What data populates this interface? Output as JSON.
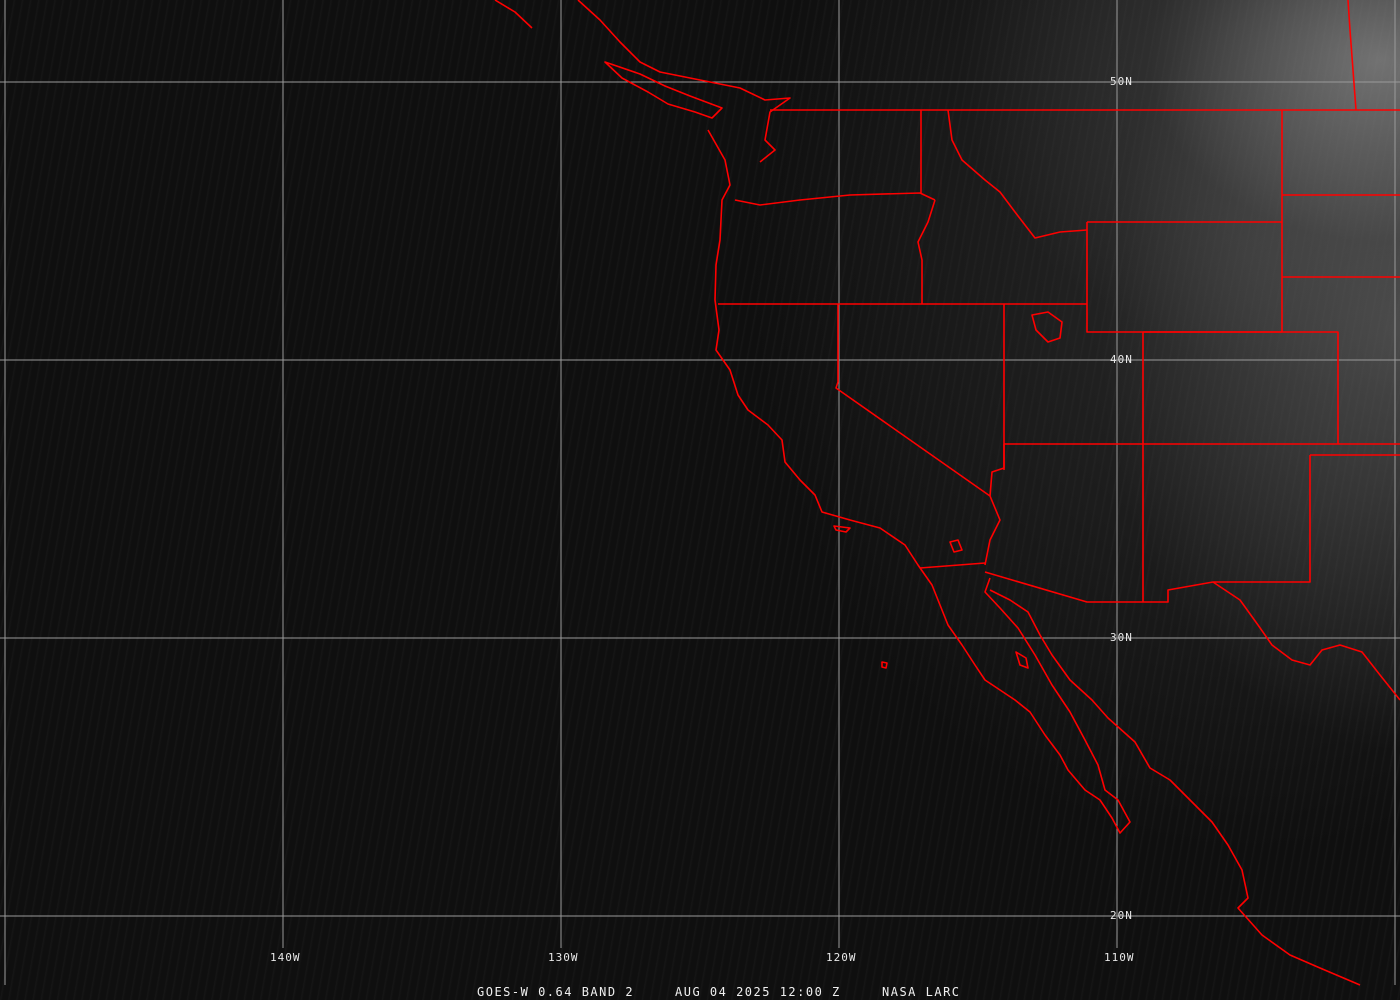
{
  "map": {
    "latitude_labels": [
      "50N",
      "40N",
      "30N",
      "20N"
    ],
    "longitude_labels": [
      "140W",
      "130W",
      "120W",
      "110W"
    ],
    "colors": {
      "borders": "#ff0000",
      "grid": "#9a9a9a",
      "labels": "#e8e8e8",
      "background": "#111111"
    }
  },
  "footer": {
    "product": "GOES-W 0.64 BAND 2",
    "datetime": "AUG 04 2025 12:00 Z",
    "credit": "NASA LARC"
  }
}
